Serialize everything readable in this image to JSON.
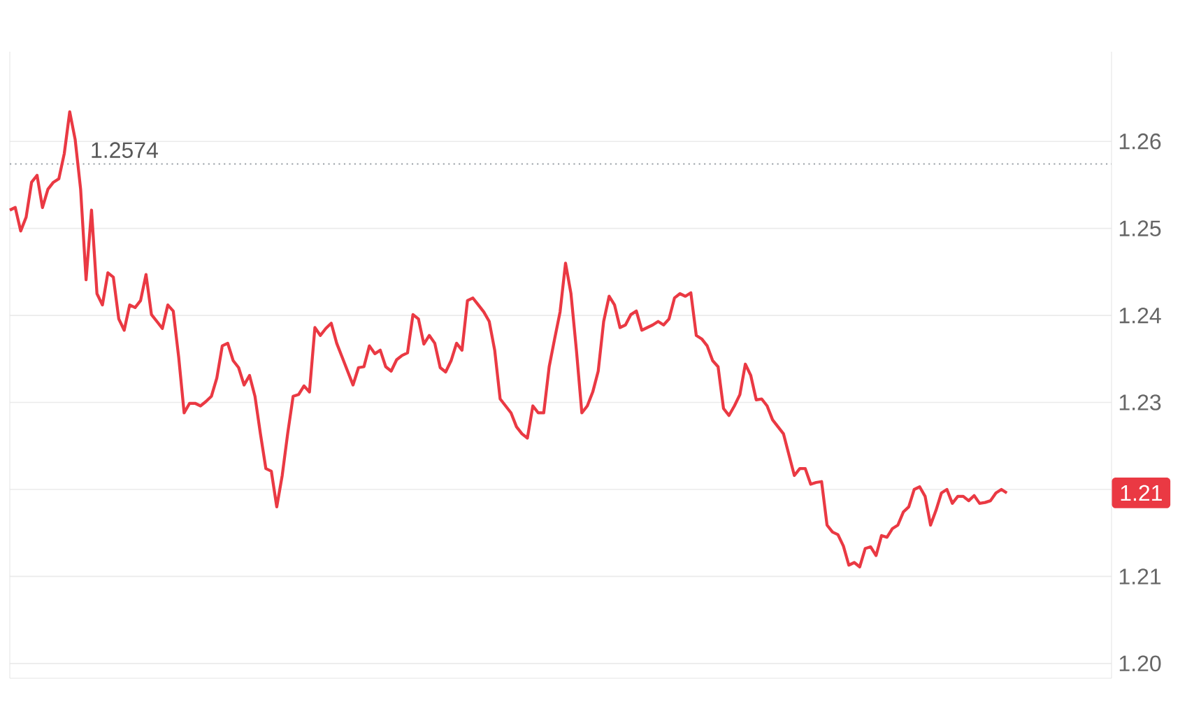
{
  "chart_data": {
    "type": "line",
    "categories": [
      null,
      null,
      null,
      null,
      null,
      null,
      null,
      null,
      null,
      null,
      null,
      null,
      null,
      null,
      null,
      null,
      null,
      null,
      null,
      null,
      null,
      null,
      null,
      null,
      null,
      null,
      null,
      null,
      null,
      null,
      null,
      null,
      null,
      null,
      null,
      null,
      null,
      null,
      null,
      null,
      null,
      null,
      null,
      null,
      null,
      null,
      null,
      null,
      null,
      null,
      null,
      null,
      null,
      null,
      null,
      null,
      null,
      null,
      null,
      null,
      null,
      null,
      null,
      null,
      null,
      null,
      null,
      null,
      null,
      null,
      null,
      null,
      null,
      null,
      null,
      null,
      null,
      null,
      null,
      null,
      null,
      null,
      null,
      null,
      null,
      null,
      null,
      null,
      null,
      null,
      null,
      null,
      null,
      null,
      null,
      null,
      null,
      null,
      null,
      null,
      null,
      null,
      null,
      null,
      null,
      null,
      null,
      null,
      null,
      null,
      null,
      null,
      null,
      null,
      null,
      null,
      null,
      null,
      null,
      null,
      null,
      null,
      null,
      null,
      null,
      null,
      null,
      null,
      null,
      null,
      null,
      null,
      null,
      null,
      null,
      null,
      null,
      null,
      null,
      null,
      null,
      null,
      null,
      null,
      null,
      null,
      null,
      null,
      null,
      null,
      null,
      null,
      null,
      null,
      null,
      null,
      null,
      null,
      null,
      null,
      null,
      null,
      null,
      null,
      null,
      null,
      null,
      null,
      null,
      null,
      null,
      null,
      null,
      null,
      null,
      null,
      null,
      null,
      null,
      null,
      null,
      null,
      null,
      null
    ],
    "series": [
      {
        "color": "#ea3943",
        "values": [
          1.2521,
          1.2524,
          1.2497,
          1.2513,
          1.2553,
          1.2561,
          1.2524,
          1.2545,
          1.2553,
          1.2557,
          1.2586,
          1.2634,
          1.2602,
          1.2545,
          1.2441,
          1.2521,
          1.2425,
          1.2412,
          1.2449,
          1.2444,
          1.2396,
          1.2383,
          1.2412,
          1.2409,
          1.2417,
          1.2447,
          1.2401,
          1.2393,
          1.2385,
          1.2412,
          1.2405,
          1.2352,
          1.2288,
          1.2299,
          1.2299,
          1.2296,
          1.2301,
          1.2307,
          1.2328,
          1.2365,
          1.2368,
          1.2348,
          1.234,
          1.232,
          1.2331,
          1.2307,
          1.2264,
          1.2224,
          1.2221,
          1.218,
          1.2216,
          1.2264,
          1.2307,
          1.2309,
          1.2319,
          1.2312,
          1.2386,
          1.2377,
          1.2385,
          1.2391,
          1.2368,
          1.2352,
          1.2336,
          1.232,
          1.234,
          1.2341,
          1.2365,
          1.2356,
          1.236,
          1.2341,
          1.2336,
          1.2349,
          1.2354,
          1.2357,
          1.2401,
          1.2396,
          1.2367,
          1.2377,
          1.2368,
          1.234,
          1.2335,
          1.2348,
          1.2368,
          1.236,
          1.2417,
          1.242,
          1.2412,
          1.2404,
          1.2393,
          1.236,
          1.2304,
          1.2296,
          1.2288,
          1.2272,
          1.2264,
          1.2259,
          1.2296,
          1.2288,
          1.2288,
          1.2341,
          1.2373,
          1.2404,
          1.246,
          1.2425,
          1.236,
          1.2288,
          1.2296,
          1.2312,
          1.2336,
          1.2393,
          1.2422,
          1.2412,
          1.2386,
          1.2389,
          1.2401,
          1.2405,
          1.2383,
          1.2386,
          1.2389,
          1.2393,
          1.2389,
          1.2396,
          1.242,
          1.2425,
          1.2422,
          1.2426,
          1.2377,
          1.2373,
          1.2365,
          1.2348,
          1.2341,
          1.2293,
          1.2285,
          1.2296,
          1.2309,
          1.2344,
          1.2331,
          1.2303,
          1.2304,
          1.2296,
          1.228,
          1.2272,
          1.2264,
          1.224,
          1.2216,
          1.2224,
          1.2224,
          1.2206,
          1.2208,
          1.2209,
          1.2159,
          1.2151,
          1.2148,
          1.2135,
          1.2113,
          1.2116,
          1.2111,
          1.2132,
          1.2134,
          1.2124,
          1.2147,
          1.2145,
          1.2155,
          1.2159,
          1.2174,
          1.218,
          1.22,
          1.2203,
          1.2192,
          1.2159,
          1.2176,
          1.2196,
          1.22,
          1.2184,
          1.2192,
          1.2192,
          1.2187,
          1.2193,
          1.2184,
          1.2185,
          1.2187,
          1.2196,
          1.22,
          1.2196
        ]
      }
    ],
    "ylim": [
      1.1983,
      1.2703
    ],
    "yticks": [
      {
        "value": 1.2,
        "label": "1.20"
      },
      1.21,
      {
        "value": 1.22,
        "label": null
      },
      1.23,
      1.24,
      1.25,
      1.26
    ],
    "grid": "y",
    "ref_lines": [
      {
        "axis": "y",
        "value": 1.2574,
        "label": "1.2574",
        "color": "#9aa0a6",
        "line_style": "dotted"
      }
    ],
    "annotations": [
      "1.21"
    ]
  }
}
